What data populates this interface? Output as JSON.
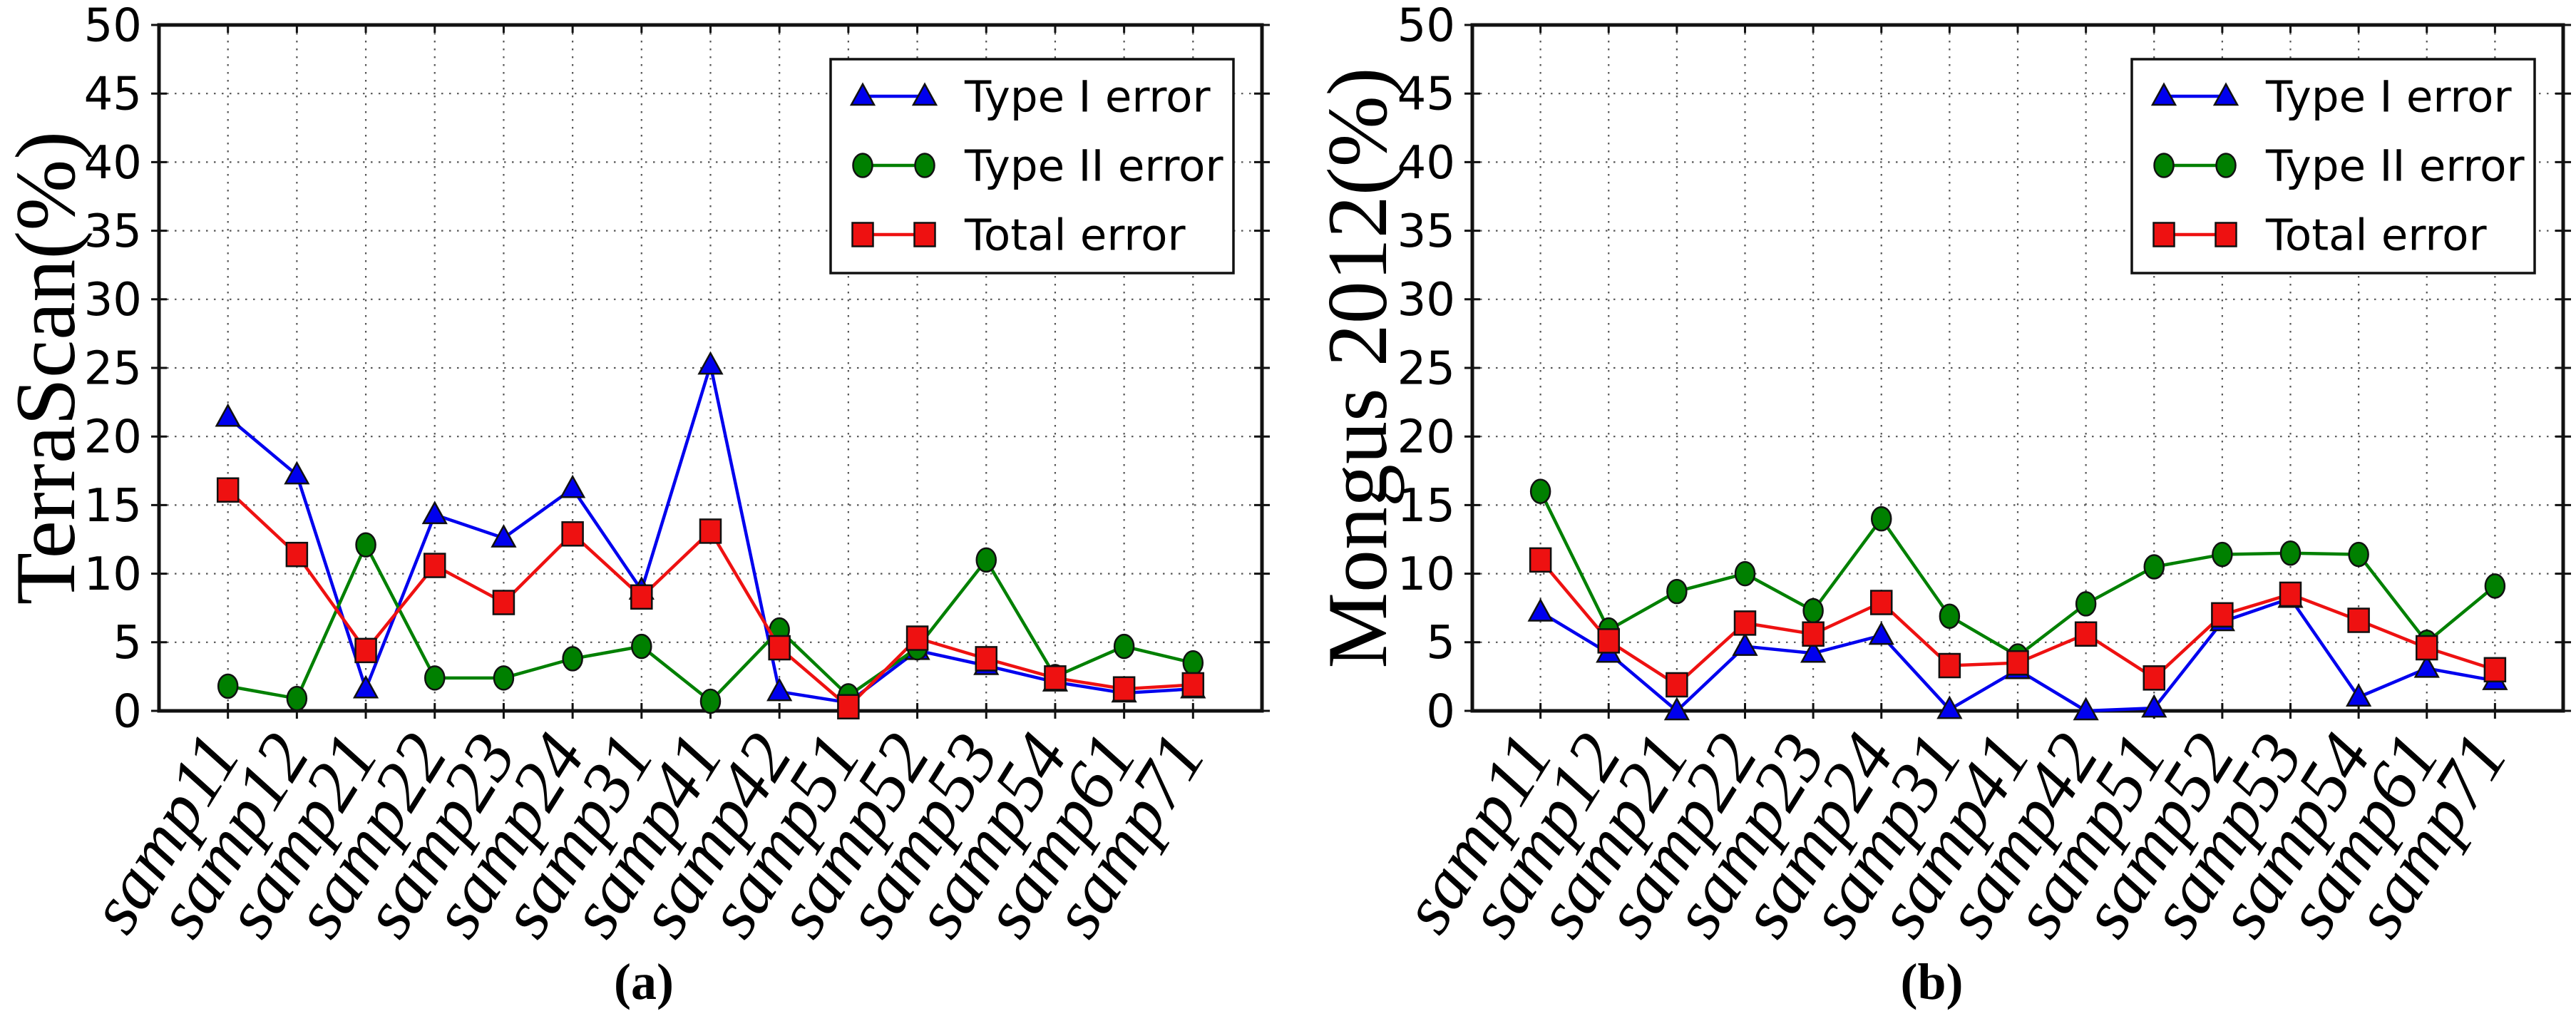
{
  "figure": {
    "captions": [
      "(a)",
      "(b)"
    ],
    "legend_position": "upper right"
  },
  "chart_data": [
    {
      "type": "line",
      "title": "",
      "xlabel": "",
      "ylabel": "TerraScan(%)",
      "ylim": [
        0,
        50
      ],
      "yticks": [
        0,
        5,
        10,
        15,
        20,
        25,
        30,
        35,
        40,
        45,
        50
      ],
      "grid": true,
      "legend_position": "upper right",
      "categories": [
        "samp11",
        "samp12",
        "samp21",
        "samp22",
        "samp23",
        "samp24",
        "samp31",
        "samp41",
        "samp42",
        "samp51",
        "samp52",
        "samp53",
        "samp54",
        "samp61",
        "samp71"
      ],
      "series": [
        {
          "name": "Type I error",
          "color": "#0000ee",
          "marker": "triangle",
          "values": [
            21.4,
            17.2,
            1.6,
            14.3,
            12.6,
            16.2,
            8.8,
            25.2,
            1.4,
            0.6,
            4.4,
            3.3,
            2.1,
            1.3,
            1.6
          ]
        },
        {
          "name": "Type II error",
          "color": "#008000",
          "marker": "circle",
          "values": [
            1.8,
            0.9,
            12.1,
            2.4,
            2.4,
            3.8,
            4.7,
            0.7,
            5.9,
            1.1,
            4.6,
            11.0,
            2.5,
            4.7,
            3.5
          ]
        },
        {
          "name": "Total error",
          "color": "#ee1111",
          "marker": "square",
          "values": [
            16.1,
            11.4,
            4.4,
            10.6,
            7.9,
            12.9,
            8.3,
            13.1,
            4.6,
            0.3,
            5.3,
            3.8,
            2.4,
            1.6,
            1.9
          ]
        }
      ]
    },
    {
      "type": "line",
      "title": "",
      "xlabel": "",
      "ylabel": "Mongus 2012(%)",
      "ylim": [
        0,
        50
      ],
      "yticks": [
        0,
        5,
        10,
        15,
        20,
        25,
        30,
        35,
        40,
        45,
        50
      ],
      "grid": true,
      "legend_position": "upper right",
      "categories": [
        "samp11",
        "samp12",
        "samp21",
        "samp22",
        "samp23",
        "samp24",
        "samp31",
        "samp41",
        "samp42",
        "samp51",
        "samp52",
        "samp53",
        "samp54",
        "samp61",
        "samp71"
      ],
      "series": [
        {
          "name": "Type I error",
          "color": "#0000ee",
          "marker": "triangle",
          "values": [
            7.2,
            4.2,
            0.0,
            4.7,
            4.2,
            5.5,
            0.1,
            3.0,
            0.0,
            0.2,
            6.5,
            8.2,
            1.0,
            3.1,
            2.2
          ]
        },
        {
          "name": "Type II error",
          "color": "#008000",
          "marker": "circle",
          "values": [
            16.0,
            5.9,
            8.7,
            10.0,
            7.3,
            14.0,
            6.9,
            4.0,
            7.8,
            10.5,
            11.4,
            11.5,
            11.4,
            5.0,
            9.1
          ]
        },
        {
          "name": "Total error",
          "color": "#ee1111",
          "marker": "square",
          "values": [
            11.0,
            5.1,
            1.9,
            6.4,
            5.6,
            7.9,
            3.3,
            3.5,
            5.6,
            2.4,
            7.0,
            8.5,
            6.6,
            4.6,
            3.0
          ]
        }
      ]
    }
  ]
}
